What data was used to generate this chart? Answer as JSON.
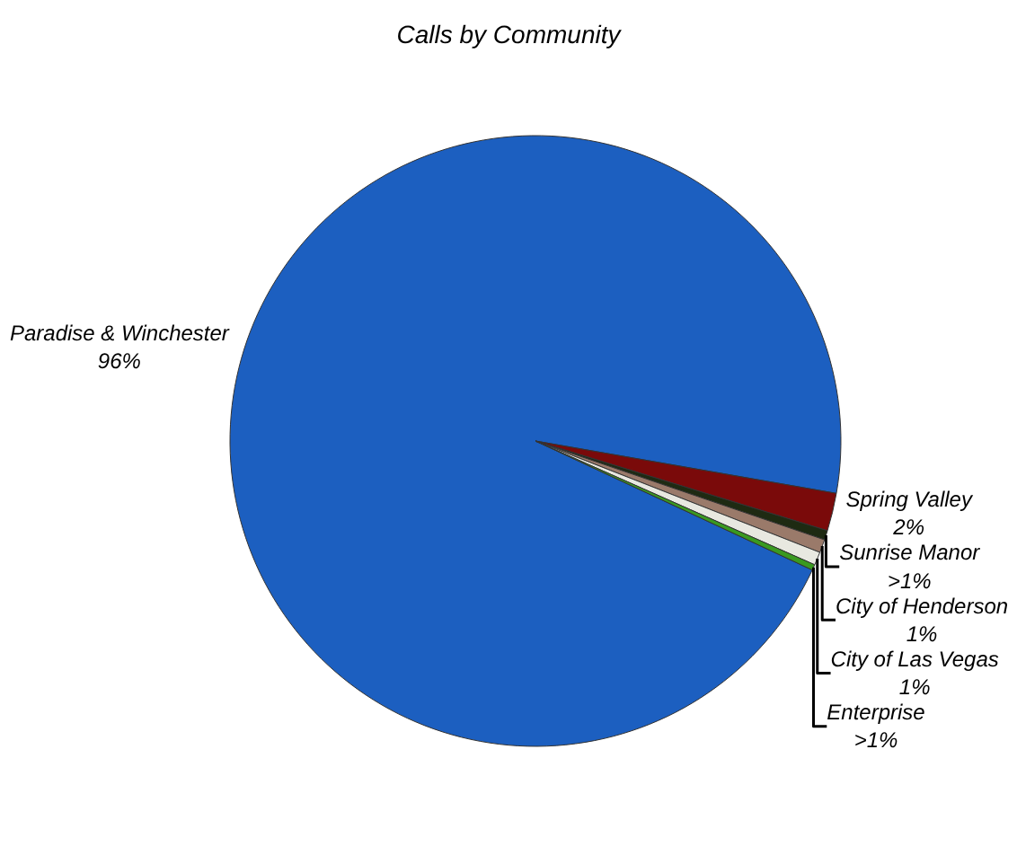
{
  "chart_data": {
    "type": "pie",
    "title": "Calls by Community",
    "categories": [
      "Paradise & Winchester",
      "Spring Valley",
      "Sunrise Manor",
      "City of Henderson",
      "City of Las Vegas",
      "Enterprise"
    ],
    "values": [
      95.8,
      2,
      0.5,
      0.7,
      0.7,
      0.3
    ],
    "value_labels": [
      "96%",
      "2%",
      ">1%",
      "1%",
      "1%",
      ">1%"
    ],
    "colors": [
      "#1c5fc0",
      "#7a0a0a",
      "#1e2a12",
      "#9a7a6a",
      "#e8e8e0",
      "#3a9a20"
    ],
    "legend": false
  }
}
